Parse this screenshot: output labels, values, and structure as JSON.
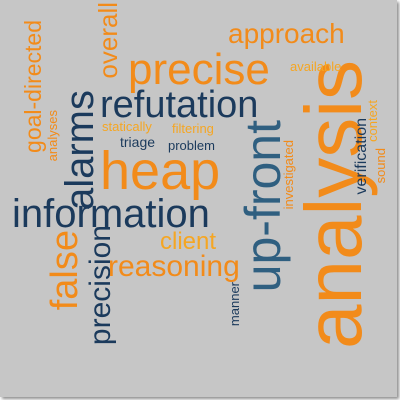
{
  "colors": {
    "background": "#c6c6c6",
    "orange": "#f28b1a",
    "amber": "#f5a623",
    "navy": "#1b3a5c",
    "teal": "#2f5f80"
  },
  "words": {
    "approach": "approach",
    "precise": "precise",
    "available": "available",
    "refutation": "refutation",
    "analysis": "analysis",
    "overall": "overall",
    "goal_directed": "goal-directed",
    "analyses": "analyses",
    "alarms": "alarms",
    "statically": "statically",
    "filtering": "filtering",
    "triage": "triage",
    "problem": "problem",
    "heap": "heap",
    "information": "information",
    "up_front": "up-front",
    "investigated": "investigated",
    "verification": "verification",
    "sound": "sound",
    "context": "context",
    "client": "client",
    "false": "false",
    "precision": "precision",
    "reasoning": "reasoning",
    "manner": "manner"
  }
}
